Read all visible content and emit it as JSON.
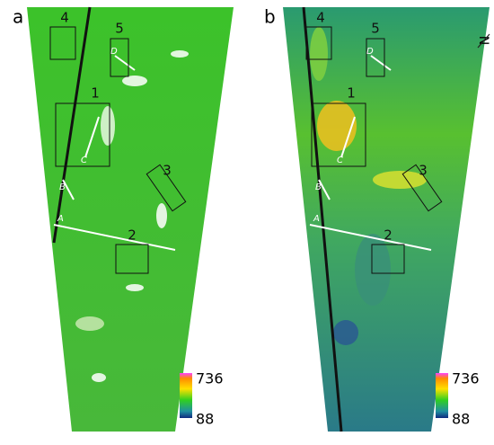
{
  "north": "N",
  "panels": [
    {
      "label": "a",
      "boxes": [
        "1",
        "2",
        "3",
        "4",
        "5"
      ],
      "lines": [
        "A",
        "B",
        "C",
        "D"
      ],
      "colorbar": {
        "max": 736,
        "min": 88
      }
    },
    {
      "label": "b",
      "boxes": [
        "1",
        "2",
        "3",
        "4",
        "5"
      ],
      "lines": [
        "A",
        "B",
        "C",
        "D"
      ],
      "colorbar": {
        "max": 736,
        "min": 88
      }
    }
  ]
}
